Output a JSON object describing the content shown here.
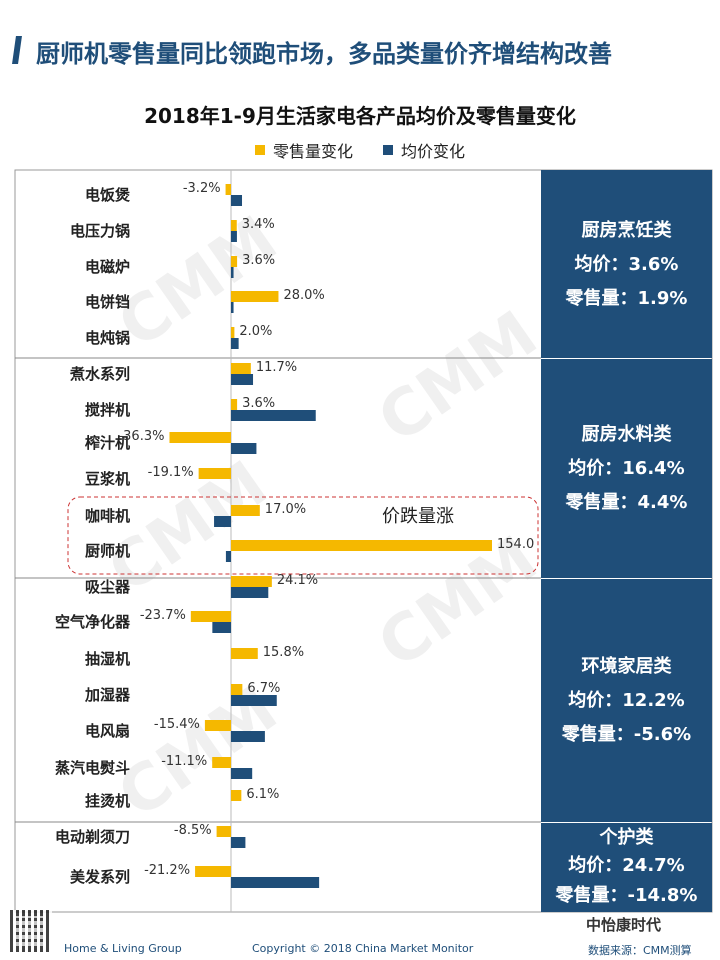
{
  "header": {
    "title": "厨师机零售量同比领跑市场，多品类量价齐增结构改善"
  },
  "colors": {
    "retail": "#f5b800",
    "price": "#1f4e79",
    "panel": "#1f4e79",
    "divider": "#888888",
    "callout": "#cc3333"
  },
  "annotation": {
    "callout_text": "价跌量涨"
  },
  "chart_data": {
    "type": "bar",
    "title": "2018年1-9月生活家电各产品均价及零售量变化",
    "orientation": "horizontal",
    "series": [
      {
        "name": "零售量变化",
        "color": "#f5b800",
        "unit": "%"
      },
      {
        "name": "均价变化",
        "color": "#1f4e79",
        "unit": "%"
      }
    ],
    "categories": [
      "电饭煲",
      "电压力锅",
      "电磁炉",
      "电饼铛",
      "电炖锅",
      "煮水系列",
      "搅拌机",
      "榨汁机",
      "豆浆机",
      "咖啡机",
      "厨师机",
      "吸尘器",
      "空气净化器",
      "抽湿机",
      "加湿器",
      "电风扇",
      "蒸汽电熨斗",
      "挂烫机",
      "电动剃须刀",
      "美发系列"
    ],
    "retail_change": [
      -3.2,
      3.4,
      3.6,
      28.0,
      2.0,
      11.7,
      3.6,
      -36.3,
      -19.1,
      17.0,
      154.0,
      24.1,
      -23.7,
      15.8,
      6.7,
      -15.4,
      -11.1,
      6.1,
      -8.5,
      -21.2
    ],
    "retail_labels": [
      "-3.2%",
      "3.4%",
      "3.6%",
      "28.0%",
      "2.0%",
      "11.7%",
      "3.6%",
      "-36.3%",
      "-19.1%",
      "17.0%",
      "154.0",
      "24.1%",
      "-23.7%",
      "15.8%",
      "6.7%",
      "-15.4%",
      "-11.1%",
      "6.1%",
      "-8.5%",
      "-21.2%"
    ],
    "price_change": [
      6.5,
      3.5,
      1.5,
      1.5,
      4.5,
      13.0,
      50.0,
      15.0,
      0,
      -10.0,
      -3.0,
      22.0,
      -11.0,
      0,
      27.0,
      20.0,
      12.5,
      0,
      8.5,
      52.0
    ],
    "groups": [
      {
        "name": "厨房烹饪类",
        "price_text": "均价：3.6%",
        "retail_text": "零售量：1.9%",
        "start": 0,
        "count": 5
      },
      {
        "name": "厨房水料类",
        "price_text": "均价：16.4%",
        "retail_text": "零售量：4.4%",
        "start": 5,
        "count": 6
      },
      {
        "name": "环境家居类",
        "price_text": "均价：12.2%",
        "retail_text": "零售量：-5.6%",
        "start": 11,
        "count": 7
      },
      {
        "name": "个护类",
        "price_text": "均价：24.7%",
        "retail_text": "零售量：-14.8%",
        "start": 18,
        "count": 2
      }
    ]
  },
  "watermark": "CMM",
  "footer": {
    "left": "Home & Living Group",
    "center": "Copyright © 2018 China Market Monitor",
    "source": "数据来源：CMM测算",
    "wechat": "中怡康时代"
  }
}
